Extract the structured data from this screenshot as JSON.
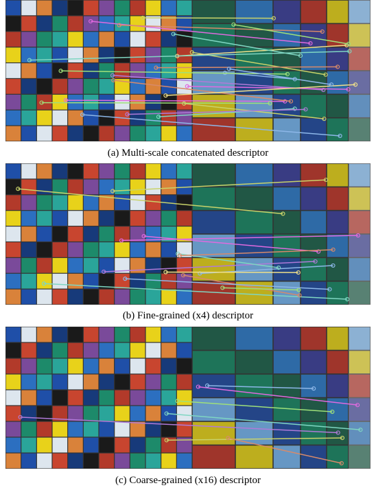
{
  "figure": {
    "panels": [
      {
        "caption": "(a) Multi-scale concatenated descriptor"
      },
      {
        "caption": "(b) Fine-grained (x4) descriptor"
      },
      {
        "caption": "(c) Coarse-grained (x16) descriptor"
      }
    ]
  }
}
